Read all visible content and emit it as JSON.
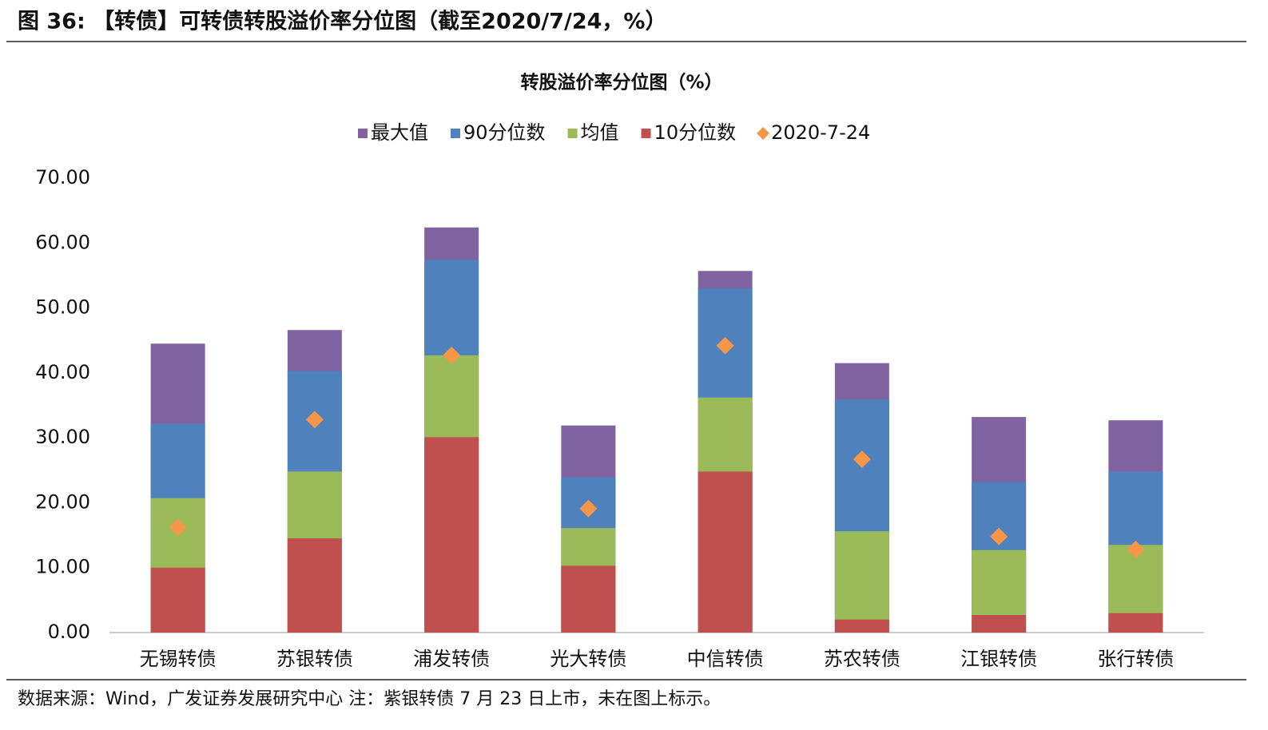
{
  "header": {
    "title": "图 36: 【转债】可转债转股溢价率分位图（截至2020/7/24，%）"
  },
  "chart_data": {
    "type": "bar",
    "title": "转股溢价率分位图（%）",
    "categories": [
      "无锡转债",
      "苏银转债",
      "浦发转债",
      "光大转债",
      "中信转债",
      "苏农转债",
      "江银转债",
      "张行转债"
    ],
    "series": [
      {
        "name": "最大值",
        "color": "#8064a2",
        "values": [
          44.5,
          46.6,
          62.4,
          31.9,
          55.7,
          41.5,
          33.2,
          32.7
        ]
      },
      {
        "name": "90分位数",
        "color": "#4f81bd",
        "values": [
          32.2,
          40.3,
          57.4,
          23.9,
          53.0,
          35.9,
          23.2,
          24.8
        ]
      },
      {
        "name": "均值",
        "color": "#9bbb59",
        "values": [
          20.7,
          24.8,
          42.7,
          16.1,
          36.2,
          15.6,
          12.7,
          13.5
        ]
      },
      {
        "name": "10分位数",
        "color": "#c0504d",
        "values": [
          10.0,
          14.5,
          30.1,
          10.3,
          24.8,
          2.0,
          2.7,
          3.0
        ]
      },
      {
        "name": "2020-7-24",
        "color": "#f79646",
        "type": "marker",
        "values": [
          16.2,
          32.8,
          42.7,
          19.1,
          44.2,
          26.7,
          14.8,
          12.8
        ]
      }
    ],
    "ylim": [
      0,
      70
    ],
    "yticks": [
      {
        "value": 0,
        "label": "0.00"
      },
      {
        "value": 10,
        "label": "10.00"
      },
      {
        "value": 20,
        "label": "20.00"
      },
      {
        "value": 30,
        "label": "30.00"
      },
      {
        "value": 40,
        "label": "40.00"
      },
      {
        "value": 50,
        "label": "50.00"
      },
      {
        "value": 60,
        "label": "60.00"
      },
      {
        "value": 70,
        "label": "70.00"
      }
    ],
    "grid": false
  },
  "footer": {
    "source": "数据来源：Wind，广发证券发展研究中心  注：紫银转债 7 月 23 日上市，未在图上标示。"
  }
}
